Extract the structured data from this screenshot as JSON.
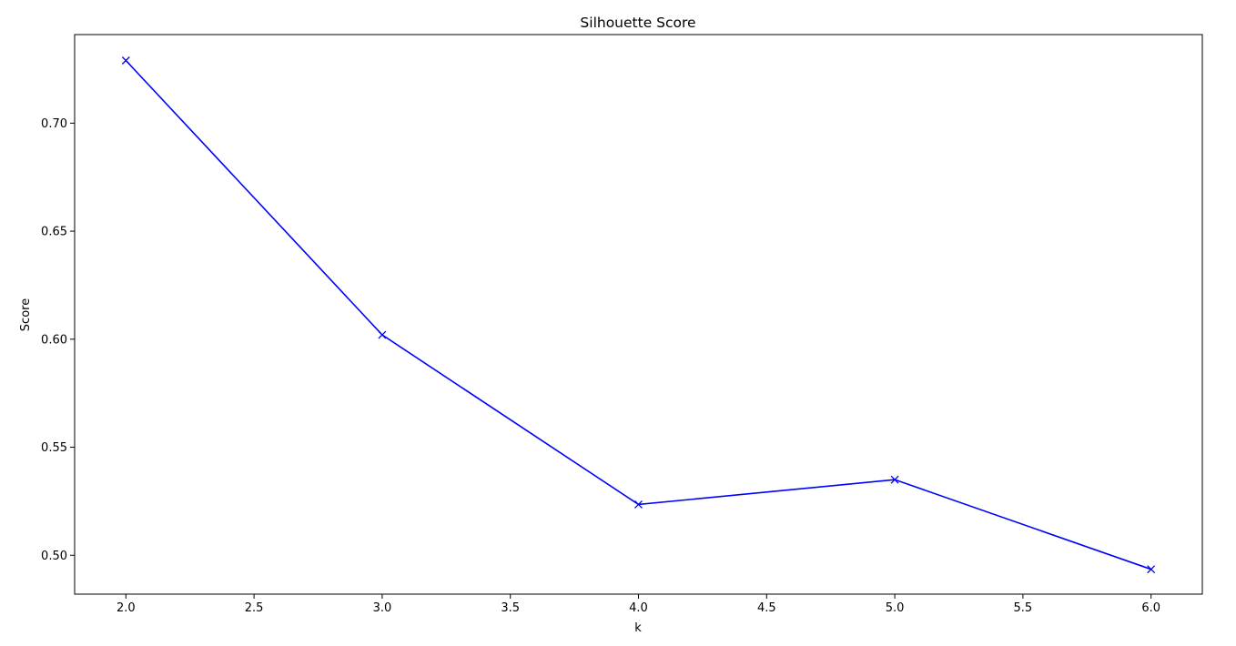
{
  "chart_data": {
    "type": "line",
    "title": "Silhouette Score",
    "xlabel": "k",
    "ylabel": "Score",
    "xlim": [
      1.8,
      6.2
    ],
    "ylim": [
      0.482,
      0.741
    ],
    "x_ticks": [
      2.0,
      2.5,
      3.0,
      3.5,
      4.0,
      4.5,
      5.0,
      5.5,
      6.0
    ],
    "x_tick_labels": [
      "2.0",
      "2.5",
      "3.0",
      "3.5",
      "4.0",
      "4.5",
      "5.0",
      "5.5",
      "6.0"
    ],
    "y_ticks": [
      0.5,
      0.55,
      0.6,
      0.65,
      0.7
    ],
    "y_tick_labels": [
      "0.50",
      "0.55",
      "0.60",
      "0.65",
      "0.70"
    ],
    "grid": false,
    "series": [
      {
        "color": "#0000ff",
        "marker": "x",
        "x": [
          2,
          3,
          4,
          5,
          6
        ],
        "y": [
          0.729,
          0.602,
          0.5235,
          0.535,
          0.4935
        ]
      }
    ]
  }
}
